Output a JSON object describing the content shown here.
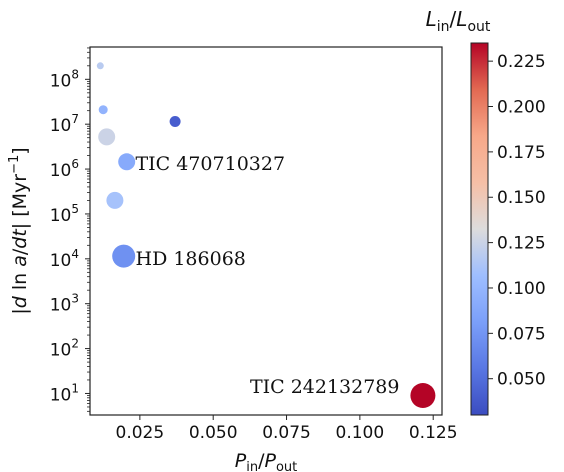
{
  "chart_data": {
    "type": "scatter",
    "xlabel": {
      "base": "P",
      "sub_in": "in",
      "slash": "/",
      "base2": "P",
      "sub_out": "out"
    },
    "ylabel": {
      "prefix": "|",
      "d": "d",
      "ln": " ln ",
      "a": "a",
      "slash": "/",
      "dt": "dt",
      "mid": "| [Myr",
      "exp": "−1",
      "suffix": "]"
    },
    "colorbar_label": {
      "base": "L",
      "sub_in": "in",
      "slash": "/",
      "base2": "L",
      "sub_out": "out"
    },
    "xlim": [
      0.008,
      0.128
    ],
    "ylim_log10": [
      0.52,
      8.72
    ],
    "y_scale": "log",
    "x_ticks": [
      {
        "value": 0.025,
        "label": "0.025"
      },
      {
        "value": 0.05,
        "label": "0.050"
      },
      {
        "value": 0.075,
        "label": "0.075"
      },
      {
        "value": 0.1,
        "label": "0.100"
      },
      {
        "value": 0.125,
        "label": "0.125"
      }
    ],
    "y_ticks": [
      {
        "exp": 1,
        "base": "10",
        "power": "1"
      },
      {
        "exp": 2,
        "base": "10",
        "power": "2"
      },
      {
        "exp": 3,
        "base": "10",
        "power": "3"
      },
      {
        "exp": 4,
        "base": "10",
        "power": "4"
      },
      {
        "exp": 5,
        "base": "10",
        "power": "5"
      },
      {
        "exp": 6,
        "base": "10",
        "power": "6"
      },
      {
        "exp": 7,
        "base": "10",
        "power": "7"
      },
      {
        "exp": 8,
        "base": "10",
        "power": "8"
      }
    ],
    "color_range": [
      0.03,
      0.235
    ],
    "colorbar_ticks": [
      {
        "value": 0.05,
        "label": "0.050"
      },
      {
        "value": 0.075,
        "label": "0.075"
      },
      {
        "value": 0.1,
        "label": "0.100"
      },
      {
        "value": 0.125,
        "label": "0.125"
      },
      {
        "value": 0.15,
        "label": "0.150"
      },
      {
        "value": 0.175,
        "label": "0.175"
      },
      {
        "value": 0.2,
        "label": "0.200"
      },
      {
        "value": 0.225,
        "label": "0.225"
      }
    ],
    "points": [
      {
        "x": 0.0115,
        "y": 200000000,
        "c": 0.118,
        "r": 3.5
      },
      {
        "x": 0.0125,
        "y": 21000000,
        "c": 0.098,
        "r": 4.5
      },
      {
        "x": 0.037,
        "y": 11500000,
        "c": 0.04,
        "r": 5.5
      },
      {
        "x": 0.0137,
        "y": 5200000,
        "c": 0.125,
        "r": 8.5
      },
      {
        "x": 0.0205,
        "y": 1450000,
        "c": 0.09,
        "r": 8.5
      },
      {
        "x": 0.0165,
        "y": 200000,
        "c": 0.11,
        "r": 8.5
      },
      {
        "x": 0.0195,
        "y": 11500,
        "c": 0.072,
        "r": 11.5
      },
      {
        "x": 0.1215,
        "y": 9,
        "c": 0.235,
        "r": 12.5
      }
    ],
    "annotations": [
      {
        "text": "TIC 470710327",
        "x": 0.0235,
        "y": 1300000,
        "anchor": "start"
      },
      {
        "text": "HD 186068",
        "x": 0.0235,
        "y": 10000,
        "anchor": "start"
      },
      {
        "text": "TIC 242132789",
        "x": 0.1135,
        "y": 14,
        "anchor": "end"
      }
    ],
    "grid": false,
    "colormap": "coolwarm"
  }
}
